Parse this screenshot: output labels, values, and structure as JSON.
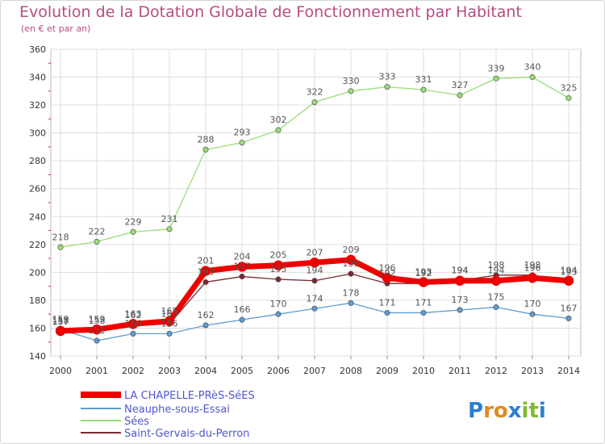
{
  "chart_data": {
    "type": "line",
    "title": "Evolution de la Dotation Globale de Fonctionnement par Habitant",
    "subtitle": "(en € et par an)",
    "xlabel": "",
    "ylabel": "",
    "x": [
      "2000",
      "2001",
      "2002",
      "2003",
      "2004",
      "2005",
      "2006",
      "2007",
      "2008",
      "2009",
      "2010",
      "2011",
      "2012",
      "2013",
      "2014"
    ],
    "ylim": [
      140,
      360
    ],
    "yticks": [
      "140",
      "160",
      "180",
      "200",
      "220",
      "240",
      "260",
      "280",
      "300",
      "320",
      "340",
      "360"
    ],
    "grid": true,
    "legend_position": "bottom-left",
    "series": [
      {
        "name": "LA CHAPELLE-PRèS-SéES",
        "color": "#ee0000",
        "width": 7,
        "values": [
          158,
          159,
          163,
          165,
          201,
          204,
          205,
          207,
          209,
          196,
          193,
          194,
          194,
          196,
          194
        ],
        "labels": [
          "158",
          "159",
          "163",
          "165",
          "201",
          "204",
          "205",
          "207",
          "209",
          "196",
          "193",
          "194",
          "194",
          "196",
          "194"
        ]
      },
      {
        "name": "Neauphe-sous-Essai",
        "color": "#5e9bd1",
        "width": 1.3,
        "values": [
          159,
          151,
          156,
          156,
          162,
          166,
          170,
          174,
          178,
          171,
          171,
          173,
          175,
          170,
          167
        ],
        "labels": [
          "159",
          "151",
          "156",
          "156",
          "162",
          "166",
          "170",
          "174",
          "178",
          "171",
          "171",
          "173",
          "175",
          "170",
          "167"
        ]
      },
      {
        "name": "Sées",
        "color": "#99dd77",
        "width": 1.3,
        "values": [
          218,
          222,
          229,
          231,
          288,
          293,
          302,
          322,
          330,
          333,
          331,
          327,
          339,
          340,
          325
        ],
        "labels": [
          "218",
          "222",
          "229",
          "231",
          "288",
          "293",
          "302",
          "322",
          "330",
          "333",
          "331",
          "327",
          "339",
          "340",
          "325"
        ]
      },
      {
        "name": "Saint-Gervais-du-Perron",
        "color": "#7a2a32",
        "width": 1.3,
        "values": [
          157,
          158,
          162,
          163,
          193,
          197,
          195,
          194,
          199,
          192,
          192,
          194,
          198,
          198,
          193
        ],
        "labels": [
          "157",
          "158",
          "162",
          "163",
          "193",
          "197",
          "195",
          "194",
          "199",
          "192",
          "192",
          "194",
          "198",
          "198",
          "193"
        ]
      }
    ]
  },
  "logo": {
    "text": "Proxiti",
    "letters": [
      {
        "ch": "P",
        "color": "#2a7fcf"
      },
      {
        "ch": "r",
        "color": "#e08a1e"
      },
      {
        "ch": "o",
        "color": "#e08a1e"
      },
      {
        "ch": "x",
        "color": "#2a7fcf"
      },
      {
        "ch": "i",
        "color": "#7cbc2a"
      },
      {
        "ch": "t",
        "color": "#7cbc2a"
      },
      {
        "ch": "i",
        "color": "#2a7fcf"
      }
    ]
  }
}
